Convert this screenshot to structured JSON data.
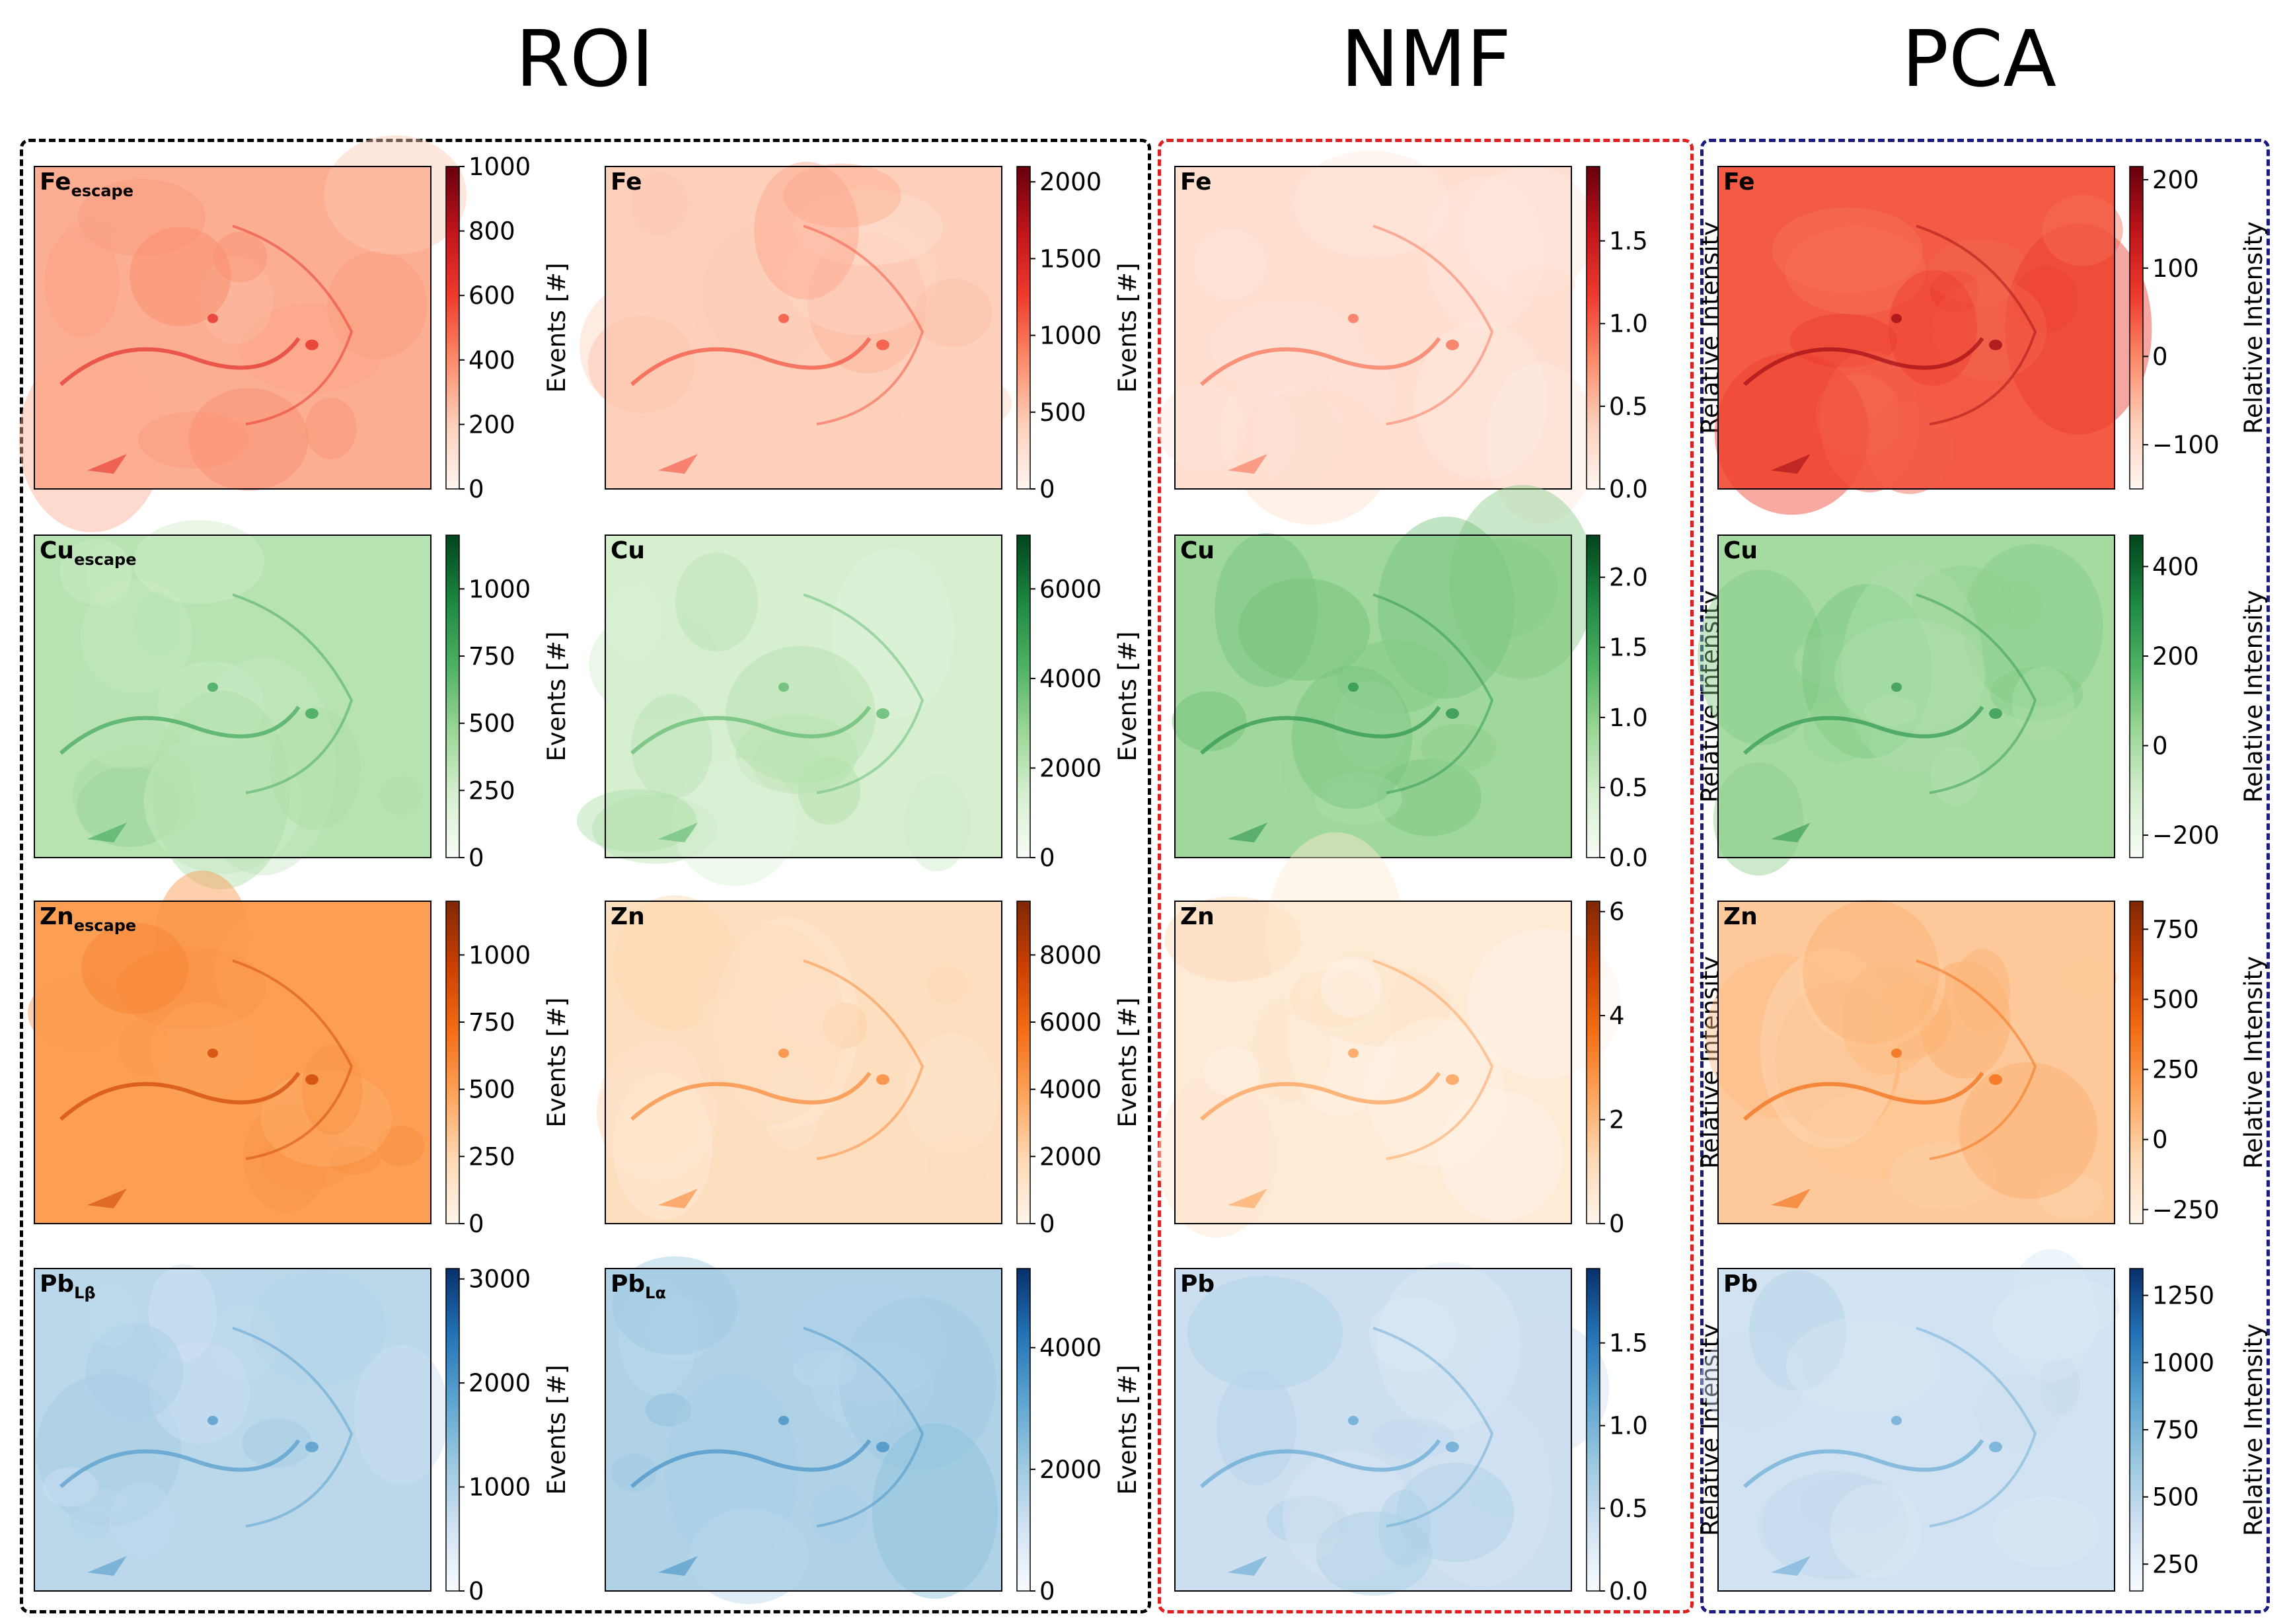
{
  "figure": {
    "sections": [
      {
        "title": "ROI",
        "box_color": "#111111"
      },
      {
        "title": "NMF",
        "box_color": "#e02020"
      },
      {
        "title": "PCA",
        "box_color": "#1a1a80"
      }
    ]
  },
  "colormaps": {
    "Reds": [
      "#fff5f0",
      "#fdd0bb",
      "#fb8b6a",
      "#ee3b2d",
      "#c0141b",
      "#67000d"
    ],
    "Greens": [
      "#f7fcf5",
      "#d5efcf",
      "#99d594",
      "#4bb062",
      "#1c8641",
      "#00441b"
    ],
    "Oranges": [
      "#fff5eb",
      "#fdd9b4",
      "#fda45c",
      "#f36d14",
      "#c94001",
      "#7f2704"
    ],
    "Blues": [
      "#f7fbff",
      "#d1e2f2",
      "#9ac8e0",
      "#5aa2cf",
      "#2272b5",
      "#08306b"
    ]
  },
  "chart_data": [
    {
      "type": "heatmap",
      "panel": "ROI Fe escape",
      "label_main": "Fe",
      "label_sub": "escape",
      "cmap": "Reds",
      "cbar_label": "Events [#]",
      "vmin": 0,
      "vmax": 1000,
      "ticks": [
        0,
        200,
        400,
        600,
        800,
        1000
      ],
      "tick_labels": [
        "0",
        "200",
        "400",
        "600",
        "800",
        "1000"
      ],
      "mean_level": 0.3
    },
    {
      "type": "heatmap",
      "panel": "ROI Fe",
      "label_main": "Fe",
      "label_sub": "",
      "cmap": "Reds",
      "cbar_label": "Events [#]",
      "vmin": 0,
      "vmax": 2100,
      "ticks": [
        0,
        500,
        1000,
        1500,
        2000
      ],
      "tick_labels": [
        "0",
        "500",
        "1000",
        "1500",
        "2000"
      ],
      "mean_level": 0.2
    },
    {
      "type": "heatmap",
      "panel": "NMF Fe",
      "label_main": "Fe",
      "label_sub": "",
      "cmap": "Reds",
      "cbar_label": "Relative Intensity",
      "vmin": 0,
      "vmax": 1.95,
      "ticks": [
        0,
        0.5,
        1.0,
        1.5
      ],
      "tick_labels": [
        "0.0",
        "0.5",
        "1.0",
        "1.5"
      ],
      "mean_level": 0.12
    },
    {
      "type": "heatmap",
      "panel": "PCA Fe",
      "label_main": "Fe",
      "label_sub": "",
      "cmap": "Reds",
      "cbar_label": "Relative Intensity",
      "vmin": -150,
      "vmax": 215,
      "ticks": [
        -100,
        0,
        100,
        200
      ],
      "tick_labels": [
        "−100",
        "0",
        "100",
        "200"
      ],
      "mean_level": 0.52
    },
    {
      "type": "heatmap",
      "panel": "ROI Cu escape",
      "label_main": "Cu",
      "label_sub": "escape",
      "cmap": "Greens",
      "cbar_label": "Events [#]",
      "vmin": 0,
      "vmax": 1200,
      "ticks": [
        0,
        250,
        500,
        750,
        1000
      ],
      "tick_labels": [
        "0",
        "250",
        "500",
        "750",
        "1000"
      ],
      "mean_level": 0.3
    },
    {
      "type": "heatmap",
      "panel": "ROI Cu",
      "label_main": "Cu",
      "label_sub": "",
      "cmap": "Greens",
      "cbar_label": "Events [#]",
      "vmin": 0,
      "vmax": 7200,
      "ticks": [
        0,
        2000,
        4000,
        6000
      ],
      "tick_labels": [
        "0",
        "2000",
        "4000",
        "6000"
      ],
      "mean_level": 0.2
    },
    {
      "type": "heatmap",
      "panel": "NMF Cu",
      "label_main": "Cu",
      "label_sub": "",
      "cmap": "Greens",
      "cbar_label": "Relative Intensity",
      "vmin": 0,
      "vmax": 2.3,
      "ticks": [
        0,
        0.5,
        1.0,
        1.5,
        2.0
      ],
      "tick_labels": [
        "0.0",
        "0.5",
        "1.0",
        "1.5",
        "2.0"
      ],
      "mean_level": 0.38
    },
    {
      "type": "heatmap",
      "panel": "PCA Cu",
      "label_main": "Cu",
      "label_sub": "",
      "cmap": "Greens",
      "cbar_label": "Relative Intensity",
      "vmin": -250,
      "vmax": 470,
      "ticks": [
        -200,
        0,
        200,
        400
      ],
      "tick_labels": [
        "−200",
        "0",
        "200",
        "400"
      ],
      "mean_level": 0.36
    },
    {
      "type": "heatmap",
      "panel": "ROI Zn escape",
      "label_main": "Zn",
      "label_sub": "escape",
      "cmap": "Oranges",
      "cbar_label": "Events [#]",
      "vmin": 0,
      "vmax": 1200,
      "ticks": [
        0,
        250,
        500,
        750,
        1000
      ],
      "tick_labels": [
        "0",
        "250",
        "500",
        "750",
        "1000"
      ],
      "mean_level": 0.42
    },
    {
      "type": "heatmap",
      "panel": "ROI Zn",
      "label_main": "Zn",
      "label_sub": "",
      "cmap": "Oranges",
      "cbar_label": "Events [#]",
      "vmin": 0,
      "vmax": 9600,
      "ticks": [
        0,
        2000,
        4000,
        6000,
        8000
      ],
      "tick_labels": [
        "0",
        "2000",
        "4000",
        "6000",
        "8000"
      ],
      "mean_level": 0.16
    },
    {
      "type": "heatmap",
      "panel": "NMF Zn",
      "label_main": "Zn",
      "label_sub": "",
      "cmap": "Oranges",
      "cbar_label": "Relative Intensity",
      "vmin": 0,
      "vmax": 6.2,
      "ticks": [
        0,
        2,
        4,
        6
      ],
      "tick_labels": [
        "0",
        "2",
        "4",
        "6"
      ],
      "mean_level": 0.08
    },
    {
      "type": "heatmap",
      "panel": "PCA Zn",
      "label_main": "Zn",
      "label_sub": "",
      "cmap": "Oranges",
      "cbar_label": "Relative Intensity",
      "vmin": -300,
      "vmax": 850,
      "ticks": [
        -250,
        0,
        250,
        500,
        750
      ],
      "tick_labels": [
        "−250",
        "0",
        "250",
        "500",
        "750"
      ],
      "mean_level": 0.26
    },
    {
      "type": "heatmap",
      "panel": "ROI Pb L-beta",
      "label_main": "Pb",
      "label_sub": "Lβ",
      "cmap": "Blues",
      "cbar_label": "Events [#]",
      "vmin": 0,
      "vmax": 3100,
      "ticks": [
        0,
        1000,
        2000,
        3000
      ],
      "tick_labels": [
        "0",
        "1000",
        "2000",
        "3000"
      ],
      "mean_level": 0.28
    },
    {
      "type": "heatmap",
      "panel": "ROI Pb L-alpha",
      "label_main": "Pb",
      "label_sub": "Lα",
      "cmap": "Blues",
      "cbar_label": "Events [#]",
      "vmin": 0,
      "vmax": 5300,
      "ticks": [
        0,
        2000,
        4000
      ],
      "tick_labels": [
        "0",
        "2000",
        "4000"
      ],
      "mean_level": 0.32
    },
    {
      "type": "heatmap",
      "panel": "NMF Pb",
      "label_main": "Pb",
      "label_sub": "",
      "cmap": "Blues",
      "cbar_label": "Relative Intensity",
      "vmin": 0,
      "vmax": 1.95,
      "ticks": [
        0,
        0.5,
        1.0,
        1.5
      ],
      "tick_labels": [
        "0.0",
        "0.5",
        "1.0",
        "1.5"
      ],
      "mean_level": 0.22
    },
    {
      "type": "heatmap",
      "panel": "PCA Pb",
      "label_main": "Pb",
      "label_sub": "",
      "cmap": "Blues",
      "cbar_label": "Relative Intensity",
      "vmin": 150,
      "vmax": 1350,
      "ticks": [
        250,
        500,
        750,
        1000,
        1250
      ],
      "tick_labels": [
        "250",
        "500",
        "750",
        "1000",
        "1250"
      ],
      "mean_level": 0.2
    }
  ]
}
